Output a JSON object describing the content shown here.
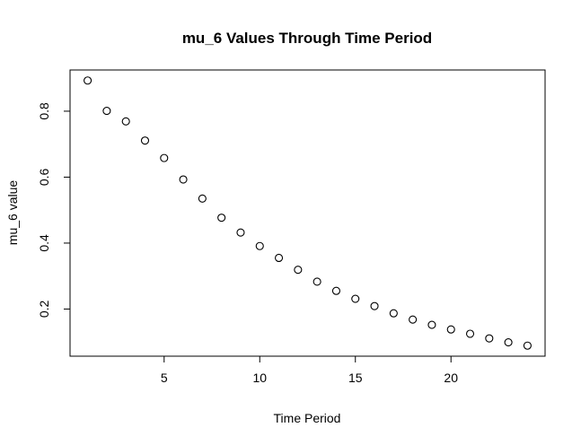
{
  "chart_data": {
    "type": "scatter",
    "title": "mu_6 Values Through Time Period",
    "xlabel": "Time Period",
    "ylabel": "mu_6 value",
    "x": [
      1,
      2,
      3,
      4,
      5,
      6,
      7,
      8,
      9,
      10,
      11,
      12,
      13,
      14,
      15,
      16,
      17,
      18,
      19,
      20,
      21,
      22,
      23,
      24
    ],
    "y": [
      0.893,
      0.801,
      0.769,
      0.711,
      0.658,
      0.593,
      0.535,
      0.477,
      0.432,
      0.391,
      0.355,
      0.319,
      0.283,
      0.255,
      0.231,
      0.209,
      0.187,
      0.168,
      0.152,
      0.138,
      0.125,
      0.111,
      0.099,
      0.089
    ],
    "xlim": [
      0.08,
      24.92
    ],
    "ylim": [
      0.057,
      0.925
    ],
    "xticks": [
      5,
      10,
      15,
      20
    ],
    "xtick_labels": [
      "5",
      "10",
      "15",
      "20"
    ],
    "yticks": [
      0.2,
      0.4,
      0.6,
      0.8
    ],
    "ytick_labels": [
      "0.2",
      "0.4",
      "0.6",
      "0.8"
    ],
    "grid": false,
    "marker": "open-circle",
    "colors": {
      "marker": "#000000",
      "background": "#ffffff"
    }
  }
}
